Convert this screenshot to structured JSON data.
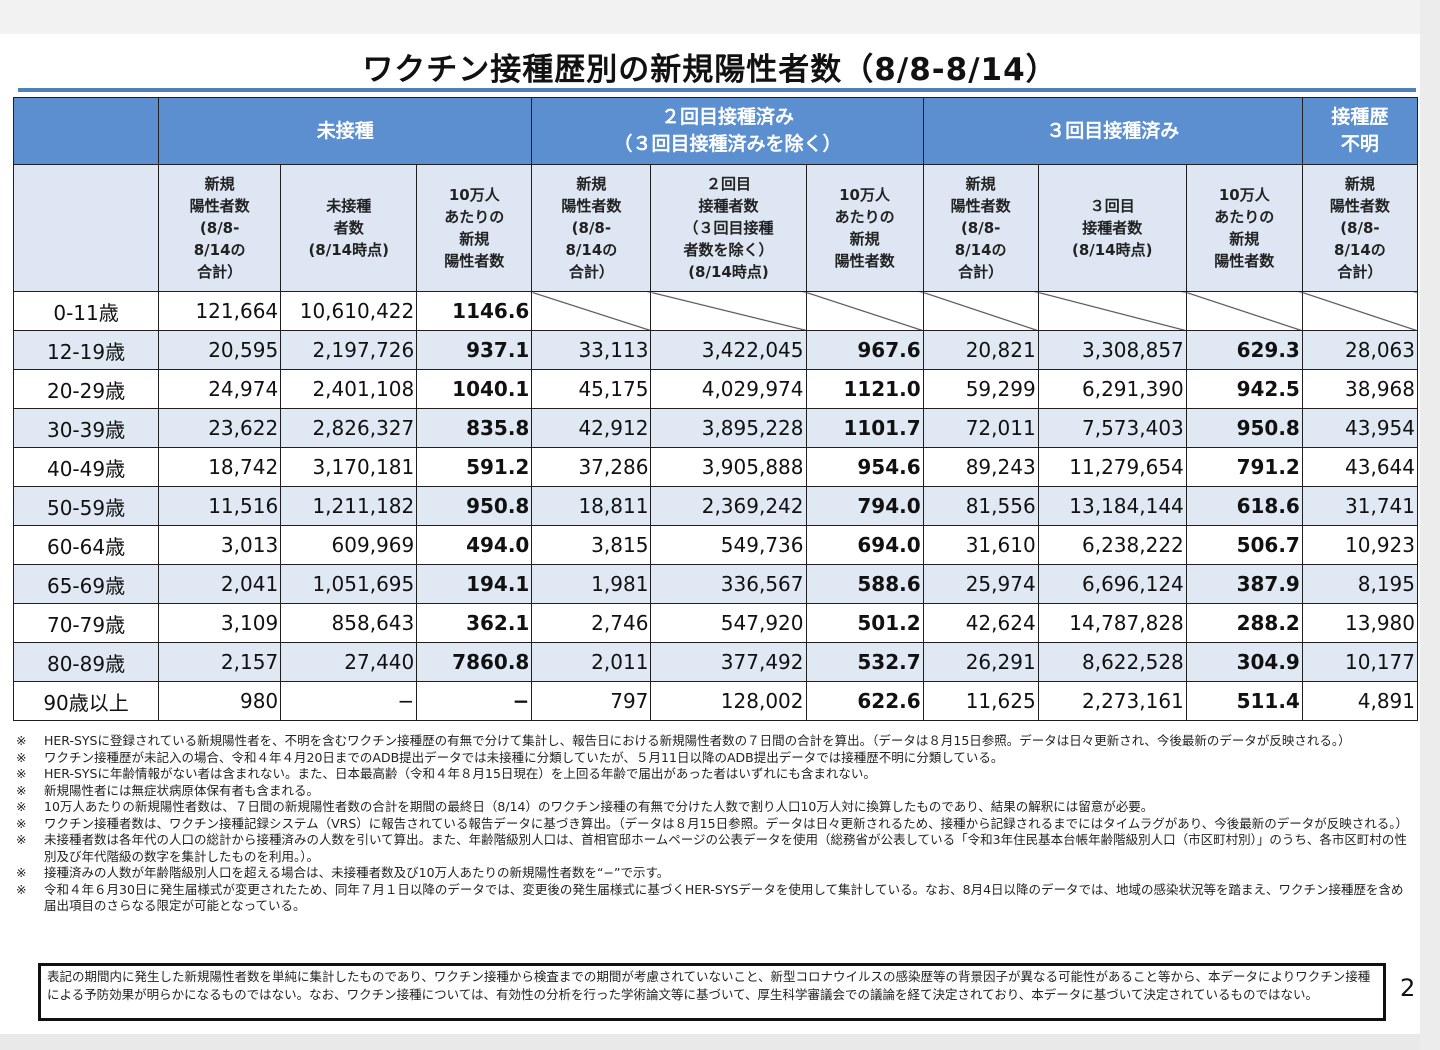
{
  "title": "ワクチン接種歴別の新規陽性者数（8/8-8/14）",
  "groups": {
    "unvaccinated": "未接種",
    "dose2_line1": "２回目接種済み",
    "dose2_line2": "（３回目接種済みを除く）",
    "dose3": "３回目接種済み",
    "unknown_line1": "接種歴",
    "unknown_line2": "不明"
  },
  "subheaders": {
    "new_cases": [
      "新規",
      "陽性者数",
      "(8/8-",
      "8/14の",
      "合計）"
    ],
    "unvax_count": [
      "未接種",
      "者数",
      "(8/14時点)"
    ],
    "per100k": [
      "10万人",
      "あたりの",
      "新規",
      "陽性者数"
    ],
    "dose2_count": [
      "２回目",
      "接種者数",
      "（３回目接種",
      "者数を除く）",
      "(8/14時点)"
    ],
    "dose3_count": [
      "３回目",
      "接種者数",
      "(8/14時点)"
    ]
  },
  "rows": [
    {
      "age": "0-11歳",
      "c": [
        "121,664",
        "10,610,422",
        "1146.6",
        "",
        "",
        "",
        "",
        "",
        "",
        ""
      ]
    },
    {
      "age": "12-19歳",
      "c": [
        "20,595",
        "2,197,726",
        "937.1",
        "33,113",
        "3,422,045",
        "967.6",
        "20,821",
        "3,308,857",
        "629.3",
        "28,063"
      ]
    },
    {
      "age": "20-29歳",
      "c": [
        "24,974",
        "2,401,108",
        "1040.1",
        "45,175",
        "4,029,974",
        "1121.0",
        "59,299",
        "6,291,390",
        "942.5",
        "38,968"
      ]
    },
    {
      "age": "30-39歳",
      "c": [
        "23,622",
        "2,826,327",
        "835.8",
        "42,912",
        "3,895,228",
        "1101.7",
        "72,011",
        "7,573,403",
        "950.8",
        "43,954"
      ]
    },
    {
      "age": "40-49歳",
      "c": [
        "18,742",
        "3,170,181",
        "591.2",
        "37,286",
        "3,905,888",
        "954.6",
        "89,243",
        "11,279,654",
        "791.2",
        "43,644"
      ]
    },
    {
      "age": "50-59歳",
      "c": [
        "11,516",
        "1,211,182",
        "950.8",
        "18,811",
        "2,369,242",
        "794.0",
        "81,556",
        "13,184,144",
        "618.6",
        "31,741"
      ]
    },
    {
      "age": "60-64歳",
      "c": [
        "3,013",
        "609,969",
        "494.0",
        "3,815",
        "549,736",
        "694.0",
        "31,610",
        "6,238,222",
        "506.7",
        "10,923"
      ]
    },
    {
      "age": "65-69歳",
      "c": [
        "2,041",
        "1,051,695",
        "194.1",
        "1,981",
        "336,567",
        "588.6",
        "25,974",
        "6,696,124",
        "387.9",
        "8,195"
      ]
    },
    {
      "age": "70-79歳",
      "c": [
        "3,109",
        "858,643",
        "362.1",
        "2,746",
        "547,920",
        "501.2",
        "42,624",
        "14,787,828",
        "288.2",
        "13,980"
      ]
    },
    {
      "age": "80-89歳",
      "c": [
        "2,157",
        "27,440",
        "7860.8",
        "2,011",
        "377,492",
        "532.7",
        "26,291",
        "8,622,528",
        "304.9",
        "10,177"
      ]
    },
    {
      "age": "90歳以上",
      "c": [
        "980",
        "−",
        "−",
        "797",
        "128,002",
        "622.6",
        "11,625",
        "2,273,161",
        "511.4",
        "4,891"
      ]
    }
  ],
  "notes": [
    "HER-SYSに登録されている新規陽性者を、不明を含むワクチン接種歴の有無で分けて集計し、報告日における新規陽性者数の７日間の合計を算出。（データは８月15日参照。データは日々更新され、今後最新のデータが反映される。）",
    "ワクチン接種歴が未記入の場合、令和４年４月20日までのADB提出データでは未接種に分類していたが、５月11日以降のADB提出データでは接種歴不明に分類している。",
    "HER-SYSに年齢情報がない者は含まれない。また、日本最高齢（令和４年８月15日現在）を上回る年齢で届出があった者はいずれにも含まれない。",
    "新規陽性者には無症状病原体保有者も含まれる。",
    "10万人あたりの新規陽性者数は、７日間の新規陽性者数の合計を期間の最終日（8/14）のワクチン接種の有無で分けた人数で割り人口10万人対に換算したものであり、結果の解釈には留意が必要。",
    "ワクチン接種者数は、ワクチン接種記録システム（VRS）に報告されている報告データに基づき算出。（データは８月15日参照。データは日々更新されるため、接種から記録されるまでにはタイムラグがあり、今後最新のデータが反映される。）",
    "未接種者数は各年代の人口の総計から接種済みの人数を引いて算出。また、年齢階級別人口は、首相官邸ホームページの公表データを使用（総務省が公表している「令和3年住民基本台帳年齢階級別人口（市区町村別）」のうち、各市区町村の性別及び年代階級の数字を集計したものを利用。）。",
    "接種済みの人数が年齢階級別人口を超える場合は、未接種者数及び10万人あたりの新規陽性者数を“−”で示す。",
    "令和４年６月30日に発生届様式が変更されたため、同年７月１日以降のデータでは、変更後の発生届様式に基づくHER-SYSデータを使用して集計している。なお、8月4日以降のデータでは、地域の感染状況等を踏まえ、ワクチン接種歴を含め届出項目のさらなる限定が可能となっている。"
  ],
  "note_mark": "※",
  "disclaimer": "表記の期間内に発生した新規陽性者数を単純に集計したものであり、ワクチン接種から検査までの期間が考慮されていないこと、新型コロナウイルスの感染歴等の背景因子が異なる可能性があること等から、本データによりワクチン接種による予防効果が明らかになるものではない。なお、ワクチン接種については、有効性の分析を行った学術論文等に基づいて、厚生科学審議会での議論を経て決定されており、本データに基づいて決定されているものではない。",
  "page_number": "2"
}
